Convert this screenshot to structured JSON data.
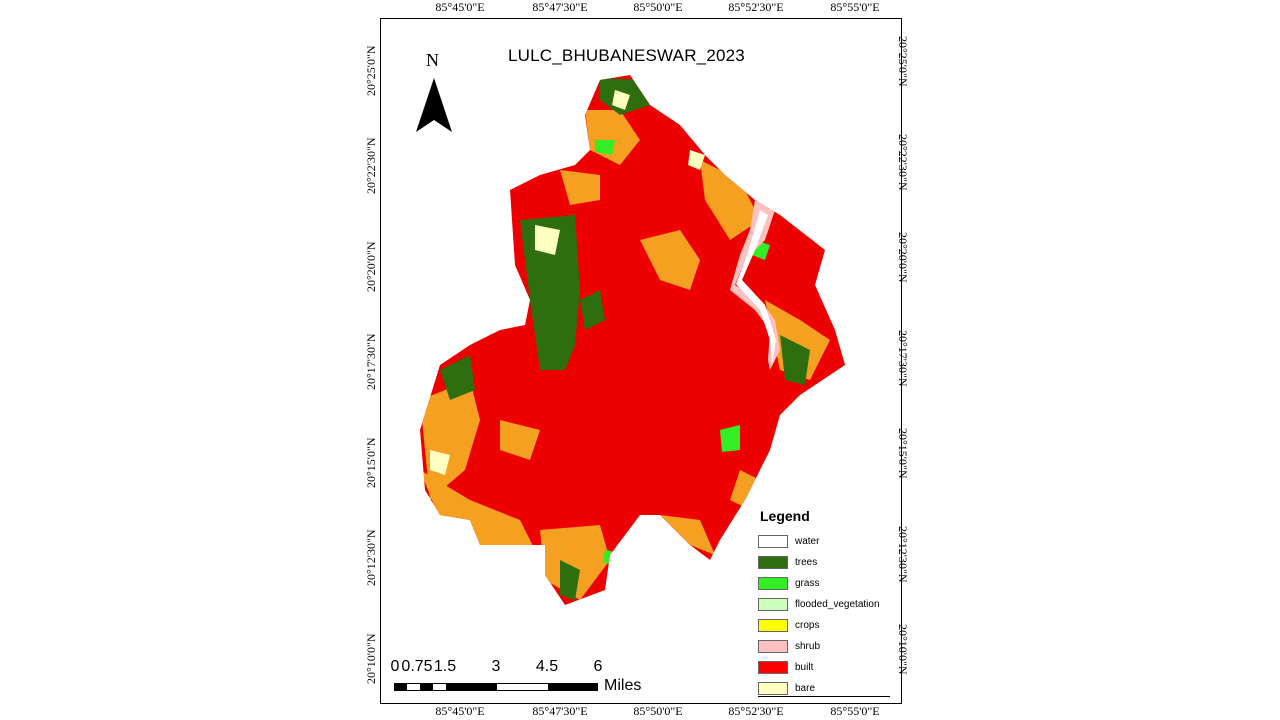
{
  "title": "LULC_BHUBANESWAR_2023",
  "north_label": "N",
  "lon_ticks": [
    "85°45'0\"E",
    "85°47'30\"E",
    "85°50'0\"E",
    "85°52'30\"E",
    "85°55'0\"E"
  ],
  "lat_ticks": [
    "20°25'0\"N",
    "20°22'30\"N",
    "20°20'0\"N",
    "20°17'30\"N",
    "20°15'0\"N",
    "20°12'30\"N",
    "20°10'0\"N"
  ],
  "legend": {
    "title": "Legend",
    "items": [
      {
        "label": "water",
        "color": "#ffffff"
      },
      {
        "label": "trees",
        "color": "#2e6e0e"
      },
      {
        "label": "grass",
        "color": "#33ee22"
      },
      {
        "label": "flooded_vegetation",
        "color": "#ccffbb"
      },
      {
        "label": "crops",
        "color": "#ffff00"
      },
      {
        "label": "shrub",
        "color": "#ffc0c0"
      },
      {
        "label": "built",
        "color": "#ff0000"
      },
      {
        "label": "bare",
        "color": "#ffffc0"
      }
    ]
  },
  "scale": {
    "labels": [
      "0",
      "0.75",
      "1.5",
      "3",
      "4.5",
      "6"
    ],
    "unit": "Miles"
  },
  "colors": {
    "built": "#ee0000",
    "crops_orange": "#f5a020",
    "trees": "#2e6e0e",
    "grass": "#33ee22",
    "bare": "#ffffc0",
    "shrub": "#ffc0c0"
  }
}
